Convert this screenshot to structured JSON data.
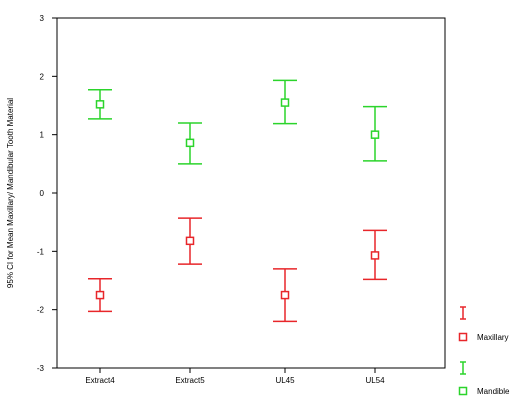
{
  "chart_data": {
    "type": "scatter",
    "subtype": "error-bar",
    "ylabel": "95% CI for Mean Maxillary/ Mandibular Tooth Material",
    "xlabel": "",
    "categories": [
      "Extract4",
      "Extract5",
      "UL45",
      "UL54"
    ],
    "yticks": [
      "3",
      "2",
      "1",
      "0",
      "-1",
      "-2",
      "-3"
    ],
    "ylim": [
      -3,
      3
    ],
    "grid": false,
    "legend_position": "right",
    "series": [
      {
        "name": "Maxillary",
        "color": "#e8262a",
        "mean": [
          -1.75,
          -0.82,
          -1.75,
          -1.07
        ],
        "lower": [
          -2.03,
          -1.22,
          -2.2,
          -1.48
        ],
        "upper": [
          -1.47,
          -0.43,
          -1.3,
          -0.64
        ]
      },
      {
        "name": "Mandible",
        "color": "#2bd42b",
        "mean": [
          1.52,
          0.86,
          1.55,
          1.0
        ],
        "lower": [
          1.27,
          0.5,
          1.19,
          0.55
        ],
        "upper": [
          1.77,
          1.2,
          1.93,
          1.48
        ]
      }
    ]
  }
}
